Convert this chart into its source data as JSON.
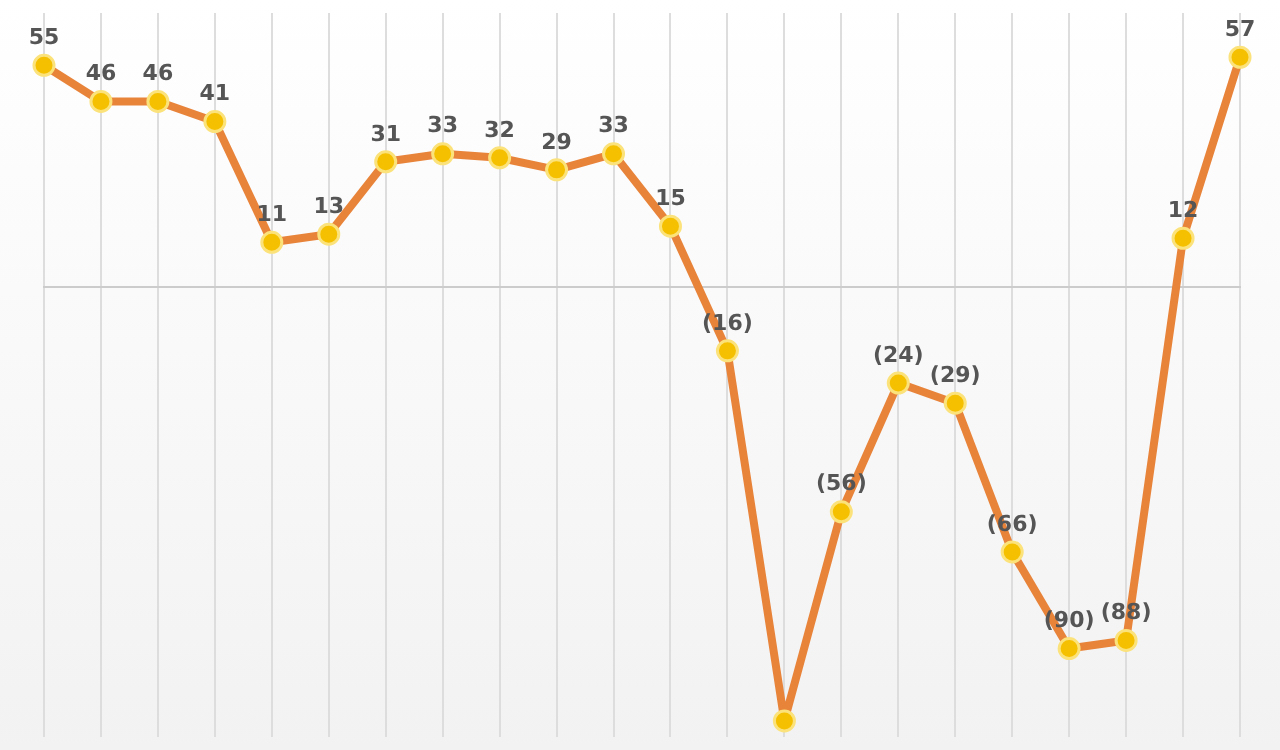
{
  "chart_data": {
    "type": "line",
    "categories": [
      null,
      null,
      null,
      null,
      null,
      null,
      null,
      null,
      null,
      null,
      null,
      null,
      null,
      null,
      null,
      null,
      null,
      null,
      null,
      null,
      null,
      null
    ],
    "series": [
      {
        "color": "#e8833a",
        "values": [
          55,
          46,
          46,
          41,
          11,
          13,
          31,
          33,
          32,
          29,
          33,
          15,
          -16,
          -108,
          -56,
          -24,
          -29,
          -66,
          -90,
          -88,
          12,
          57
        ],
        "value_labels": [
          "55",
          "46",
          "46",
          "41",
          "11",
          "13",
          "31",
          "33",
          "32",
          "29",
          "33",
          "15",
          "(16)",
          null,
          "(56)",
          "(24)",
          "(29)",
          "(66)",
          "(90)",
          "(88)",
          "12",
          "57"
        ]
      }
    ],
    "marker": "circle",
    "ylim": [
      -112,
      68
    ],
    "grid": "x",
    "legend": false
  }
}
